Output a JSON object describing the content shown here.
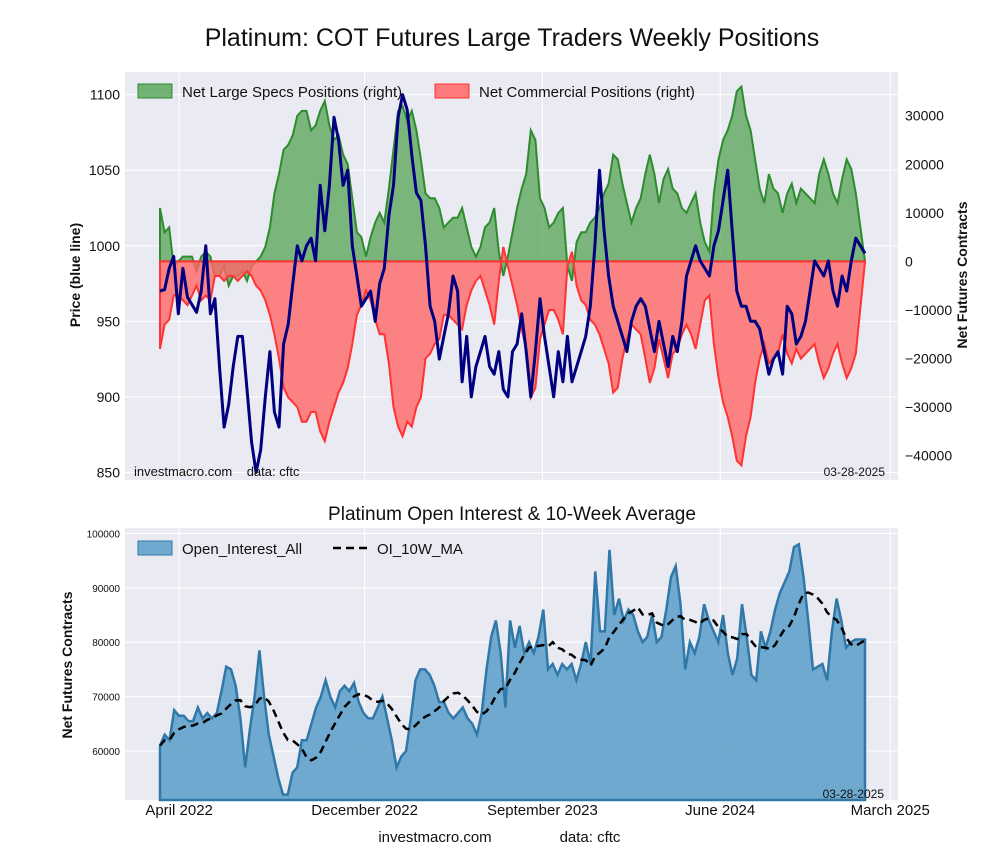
{
  "main_title": "Platinum: COT Futures Large Traders Weekly Positions",
  "footer": {
    "site": "investmacro.com",
    "source": "data: cftc"
  },
  "colors": {
    "price": "#000080",
    "specs": "#2e8b2e",
    "comm": "#ff4444",
    "oi": "#3a7ca8",
    "ma": "#000000",
    "panel_bg": "#eaeaf2"
  },
  "chart_data": [
    {
      "type": "area",
      "subtitle": "",
      "ylabel_left": "Price (blue line)",
      "ylabel_right": "Net Futures Contracts",
      "ylim_left": [
        845,
        1115
      ],
      "ylim_right": [
        -45000,
        39000
      ],
      "yticks_left": [
        "850",
        "900",
        "950",
        "1000",
        "1050",
        "1100"
      ],
      "yticks_right": [
        "−40000",
        "−30000",
        "−20000",
        "−10000",
        "0",
        "10000",
        "20000",
        "30000"
      ],
      "legend": [
        "Net Large Specs Positions (right)",
        "Net Commercial Positions (right)"
      ],
      "legend_position": "top-left",
      "annotations": {
        "left": "investmacro.com    data: cftc",
        "right": "03-28-2025"
      },
      "price": [
        970,
        971,
        985,
        993,
        955,
        985,
        966,
        961,
        956,
        970,
        1000,
        955,
        965,
        920,
        880,
        895,
        920,
        940,
        940,
        905,
        870,
        850,
        865,
        900,
        930,
        890,
        880,
        935,
        948,
        975,
        1000,
        990,
        1000,
        1005,
        990,
        1040,
        1010,
        1040,
        1085,
        1070,
        1040,
        1050,
        1000,
        980,
        960,
        965,
        970,
        950,
        975,
        985,
        1020,
        1040,
        1085,
        1100,
        1090,
        1060,
        1035,
        1030,
        1000,
        960,
        950,
        925,
        940,
        955,
        980,
        970,
        910,
        940,
        900,
        920,
        930,
        940,
        920,
        915,
        930,
        905,
        900,
        930,
        935,
        955,
        930,
        900,
        930,
        965,
        940,
        920,
        900,
        930,
        910,
        940,
        910,
        920,
        930,
        940,
        960,
        1000,
        1050,
        1010,
        980,
        960,
        950,
        940,
        930,
        950,
        960,
        965,
        960,
        945,
        930,
        950,
        935,
        920,
        940,
        930,
        950,
        980,
        990,
        1000,
        990,
        985,
        980,
        1000,
        1010,
        1030,
        1050,
        1010,
        970,
        960,
        960,
        950,
        950,
        945,
        930,
        915,
        925,
        930,
        915,
        960,
        955,
        935,
        940,
        950,
        970,
        990,
        985,
        980,
        990,
        970,
        960,
        980,
        970,
        990,
        1005,
        1000,
        995
      ],
      "specs": [
        11000,
        6000,
        7000,
        -1000,
        0,
        1000,
        1000,
        1000,
        -2000,
        1000,
        2000,
        1000,
        -3000,
        -3000,
        -1000,
        -5000,
        -3000,
        -3000,
        -2000,
        -4000,
        -1000,
        0,
        1000,
        3000,
        7000,
        14000,
        18000,
        23000,
        24000,
        26000,
        30000,
        31000,
        31000,
        27000,
        28000,
        31000,
        33000,
        28000,
        25000,
        26000,
        22000,
        20000,
        13000,
        6000,
        5000,
        1000,
        5000,
        8000,
        10000,
        8000,
        15000,
        23000,
        31000,
        32000,
        29000,
        31000,
        27000,
        21000,
        14000,
        13000,
        13000,
        11000,
        7000,
        8000,
        9000,
        9000,
        11000,
        7000,
        3000,
        1000,
        3000,
        7000,
        8000,
        11000,
        2000,
        -3000,
        1000,
        6000,
        11000,
        15000,
        18000,
        27000,
        25000,
        13000,
        11000,
        7000,
        8000,
        10000,
        11000,
        -1000,
        -4000,
        4000,
        6000,
        6000,
        8000,
        9000,
        11000,
        14000,
        16000,
        22000,
        21000,
        16000,
        12000,
        8000,
        11000,
        13000,
        18000,
        22000,
        18000,
        12000,
        17000,
        19000,
        15000,
        14000,
        11000,
        10000,
        12000,
        14000,
        8000,
        4000,
        2000,
        14000,
        21000,
        25000,
        27000,
        30000,
        35000,
        36000,
        30000,
        27000,
        21000,
        15000,
        12000,
        18000,
        15000,
        14000,
        10000,
        14000,
        16000,
        12000,
        15000,
        14000,
        13000,
        12000,
        18000,
        21000,
        18000,
        14000,
        12000,
        17000,
        21000,
        19000,
        14000
      ],
      "comm": [
        -18000,
        -13000,
        -12000,
        -7000,
        -7000,
        -8000,
        -9000,
        -7000,
        -5000,
        -8000,
        -7000,
        -8000,
        -3000,
        -3000,
        -4000,
        -3000,
        -3000,
        -4000,
        -3000,
        -2000,
        -3000,
        -5000,
        -6000,
        -8000,
        -11000,
        -15000,
        -20000,
        -26000,
        -28000,
        -29000,
        -30000,
        -33000,
        -33000,
        -31000,
        -31000,
        -35000,
        -37000,
        -33000,
        -30000,
        -27000,
        -25000,
        -22000,
        -17000,
        -11000,
        -9000,
        -6000,
        -8000,
        -12000,
        -15000,
        -15000,
        -21000,
        -30000,
        -34000,
        -36000,
        -33000,
        -34000,
        -30000,
        -28000,
        -20000,
        -19000,
        -17000,
        -16000,
        -11000,
        -11000,
        -12000,
        -13000,
        -14000,
        -9000,
        -6000,
        -4000,
        -3000,
        -6000,
        -9000,
        -13000,
        -4000,
        3000,
        -1000,
        -5000,
        -9000,
        -14000,
        -18000,
        -28000,
        -26000,
        -16000,
        -13000,
        -10000,
        -10000,
        -12000,
        -15000,
        -1000,
        2000,
        -5000,
        -8000,
        -9000,
        -12000,
        -13000,
        -15000,
        -18000,
        -21000,
        -27000,
        -26000,
        -20000,
        -16000,
        -13000,
        -14000,
        -15000,
        -20000,
        -25000,
        -22000,
        -16000,
        -20000,
        -24000,
        -19000,
        -18000,
        -15000,
        -13000,
        -15000,
        -18000,
        -13000,
        -8000,
        -7000,
        -17000,
        -24000,
        -29000,
        -32000,
        -36000,
        -41000,
        -42000,
        -36000,
        -32000,
        -25000,
        -20000,
        -17000,
        -21000,
        -20000,
        -19000,
        -15000,
        -19000,
        -21000,
        -18000,
        -20000,
        -19000,
        -18000,
        -17000,
        -21000,
        -24000,
        -22000,
        -19000,
        -17000,
        -21000,
        -24000,
        -22000,
        -19000
      ]
    },
    {
      "type": "area",
      "title": "Platinum Open Interest & 10-Week Average",
      "ylabel": "Net Futures Contracts",
      "ylim": [
        51000,
        101000
      ],
      "yticks": [
        "60000",
        "70000",
        "80000",
        "90000",
        "100000"
      ],
      "xticks": [
        "April 2022",
        "December 2022",
        "September 2023",
        "June 2024",
        "March 2025"
      ],
      "legend": [
        "Open_Interest_All",
        "OI_10W_MA"
      ],
      "legend_position": "top-left",
      "annotation": "03-28-2025",
      "oi": [
        61000,
        63000,
        62000,
        67500,
        66500,
        66500,
        65500,
        65500,
        68000,
        66000,
        67000,
        66000,
        67000,
        71000,
        75500,
        75000,
        72000,
        66000,
        57000,
        64000,
        70000,
        78500,
        70000,
        63000,
        59000,
        55000,
        52000,
        52000,
        56000,
        57000,
        62000,
        62000,
        65000,
        68000,
        70000,
        73000,
        70000,
        68000,
        71000,
        72000,
        71000,
        72500,
        69000,
        67000,
        66000,
        66000,
        68000,
        70000,
        66000,
        62000,
        57000,
        59000,
        60000,
        66000,
        73000,
        75000,
        75000,
        74000,
        72000,
        69000,
        69000,
        67000,
        66000,
        67000,
        68000,
        66000,
        65000,
        63000,
        67000,
        75000,
        81000,
        84000,
        78000,
        68000,
        84000,
        79000,
        83000,
        78000,
        80000,
        78000,
        81000,
        86000,
        75000,
        76000,
        74000,
        76000,
        75000,
        76000,
        73000,
        76000,
        80000,
        76000,
        93000,
        82000,
        82000,
        97000,
        85000,
        88000,
        84000,
        86000,
        85000,
        82000,
        80000,
        81000,
        85000,
        80000,
        81000,
        86000,
        92000,
        94000,
        87000,
        75000,
        80000,
        78000,
        81000,
        87000,
        84000,
        82000,
        80000,
        85000,
        78000,
        74000,
        77000,
        87000,
        81000,
        74000,
        73000,
        82000,
        79000,
        82000,
        86000,
        89000,
        91000,
        93000,
        97500,
        98000,
        92000,
        84000,
        75000,
        75500,
        76000,
        73000,
        82000,
        88000,
        84000,
        79000,
        80000,
        80500,
        80500,
        80500
      ]
    }
  ]
}
